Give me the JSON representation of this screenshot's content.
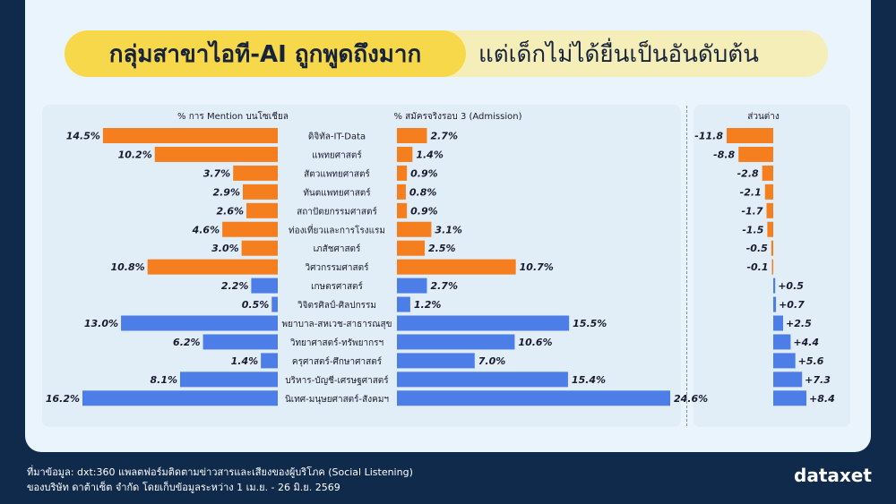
{
  "title": {
    "bold": "กลุ่มสาขาไอที-AI ถูกพูดถึงมาก",
    "light": "แต่เด็กไม่ได้ยื่นเป็นอันดับต้น"
  },
  "footer": {
    "source_line1": "ที่มาข้อมูล: dxt:360 แพลตฟอร์มติดตามข่าวสารและเสียงของผู้บริโภค (Social Listening)",
    "source_line2": "ของบริษัท ดาต้าเซ็ต จำกัด โดยเก็บข้อมูลระหว่าง 1 เม.ย. - 26 มิ.ย. 2569",
    "logo": "dataxet"
  },
  "colors": {
    "orange": "#f57f1e",
    "blue": "#4d7ee8",
    "text": "#1a1a2e"
  },
  "chart_data": {
    "type": "bar",
    "categories": [
      "ดิจิทัล-IT-Data",
      "แพทยศาสตร์",
      "สัตวแพทยศาสตร์",
      "ทันตแพทยศาสตร์",
      "สถาปัตยกรรมศาสตร์",
      "ท่องเที่ยวและการโรงแรม",
      "เภสัชศาสตร์",
      "วิศวกรรมศาสตร์",
      "เกษตรศาสตร์",
      "วิจิตรศิลป์-ศิลปกรรม",
      "พยาบาล-สหเวช-สาธารณสุข",
      "วิทยาศาสตร์-ทรัพยากรฯ",
      "ครุศาสตร์-ศึกษาศาสตร์",
      "บริหาร-บัญชี-เศรษฐศาสตร์",
      "นิเทศ-มนุษยศาสตร์-สังคมฯ"
    ],
    "series": [
      {
        "name": "% การ Mention บนโซเชียล",
        "values": [
          14.5,
          10.2,
          3.7,
          2.9,
          2.6,
          4.6,
          3.0,
          10.8,
          2.2,
          0.5,
          13.0,
          6.2,
          1.4,
          8.1,
          16.2
        ],
        "labels": [
          "14.5%",
          "10.2%",
          "3.7%",
          "2.9%",
          "2.6%",
          "4.6%",
          "3.0%",
          "10.8%",
          "2.2%",
          "0.5%",
          "13.0%",
          "6.2%",
          "1.4%",
          "8.1%",
          "16.2%"
        ]
      },
      {
        "name": "% สมัครจริงรอบ 3 (Admission)",
        "values": [
          2.7,
          1.4,
          0.9,
          0.8,
          0.9,
          3.1,
          2.5,
          10.7,
          2.7,
          1.2,
          15.5,
          10.6,
          7.0,
          15.4,
          24.6
        ],
        "labels": [
          "2.7%",
          "1.4%",
          "0.9%",
          "0.8%",
          "0.9%",
          "3.1%",
          "2.5%",
          "10.7%",
          "2.7%",
          "1.2%",
          "15.5%",
          "10.6%",
          "7.0%",
          "15.4%",
          "24.6%"
        ]
      },
      {
        "name": "ส่วนต่าง",
        "values": [
          -11.8,
          -8.8,
          -2.8,
          -2.1,
          -1.7,
          -1.5,
          -0.5,
          -0.1,
          0.5,
          0.7,
          2.5,
          4.4,
          5.6,
          7.3,
          8.4
        ],
        "labels": [
          "-11.8",
          "-8.8",
          "-2.8",
          "-2.1",
          "-1.7",
          "-1.5",
          "-0.5",
          "-0.1",
          "+0.5",
          "+0.7",
          "+2.5",
          "+4.4",
          "+5.6",
          "+7.3",
          "+8.4"
        ]
      }
    ],
    "highlight_count": 8
  }
}
